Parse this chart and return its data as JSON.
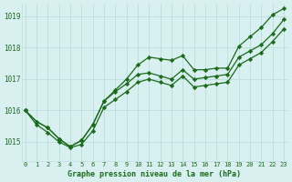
{
  "title": "Graphe pression niveau de la mer (hPa)",
  "background_color": "#d8f0f0",
  "grid_color": "#c0e0e0",
  "line_color": "#1a6b1a",
  "x_ticks": [
    0,
    1,
    2,
    3,
    4,
    5,
    6,
    7,
    8,
    9,
    10,
    11,
    12,
    13,
    14,
    15,
    16,
    17,
    18,
    19,
    20,
    21,
    22,
    23
  ],
  "y_ticks": [
    1015,
    1016,
    1017,
    1018,
    1019
  ],
  "ylim": [
    1014.4,
    1019.4
  ],
  "xlim": [
    -0.3,
    23.3
  ],
  "line_high": [
    1016.0,
    1015.65,
    1015.45,
    1015.1,
    1014.85,
    1015.05,
    1015.55,
    1016.3,
    1016.65,
    1017.0,
    1017.45,
    1017.7,
    1017.65,
    1017.6,
    1017.75,
    1017.3,
    1017.3,
    1017.35,
    1017.35,
    1018.05,
    1018.35,
    1018.65,
    1019.05,
    1019.25
  ],
  "line_mid": [
    1016.0,
    1015.65,
    1015.45,
    1015.1,
    1014.85,
    1015.05,
    1015.55,
    1016.3,
    1016.6,
    1016.85,
    1017.15,
    1017.2,
    1017.1,
    1017.0,
    1017.3,
    1017.0,
    1017.05,
    1017.1,
    1017.15,
    1017.7,
    1017.9,
    1018.1,
    1018.45,
    1018.9
  ],
  "line_low": [
    1016.0,
    1015.55,
    1015.3,
    1015.0,
    1014.82,
    1014.92,
    1015.35,
    1016.1,
    1016.35,
    1016.6,
    1016.9,
    1017.0,
    1016.9,
    1016.8,
    1017.1,
    1016.75,
    1016.8,
    1016.85,
    1016.9,
    1017.45,
    1017.65,
    1017.85,
    1018.2,
    1018.6
  ]
}
